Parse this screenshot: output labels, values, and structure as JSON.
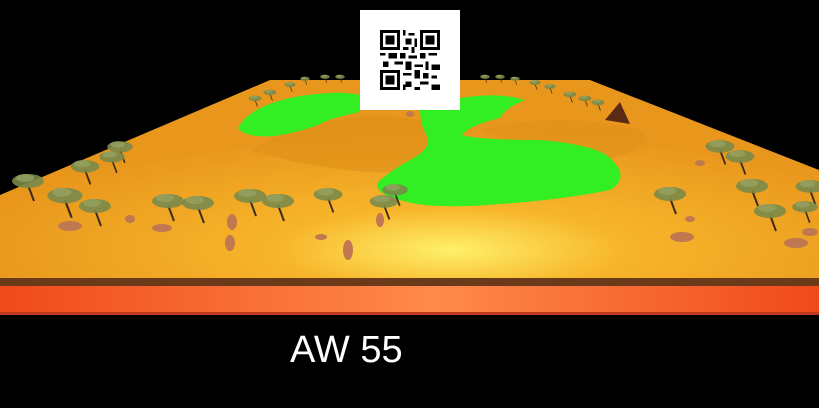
{
  "scene": {
    "caption": "AW 55",
    "qr_icon": "qr-code-icon",
    "colors": {
      "background": "#000000",
      "ground": "#f0a01e",
      "ground_glow": "#ffe44a",
      "grass": "#33ee22",
      "soil_strip": "#ff5020",
      "soil_edge": "#6b3a1a",
      "tree_trunk": "#3a2a18",
      "tree_canopy": "#7a8a4a",
      "rock": "#c07850"
    }
  }
}
